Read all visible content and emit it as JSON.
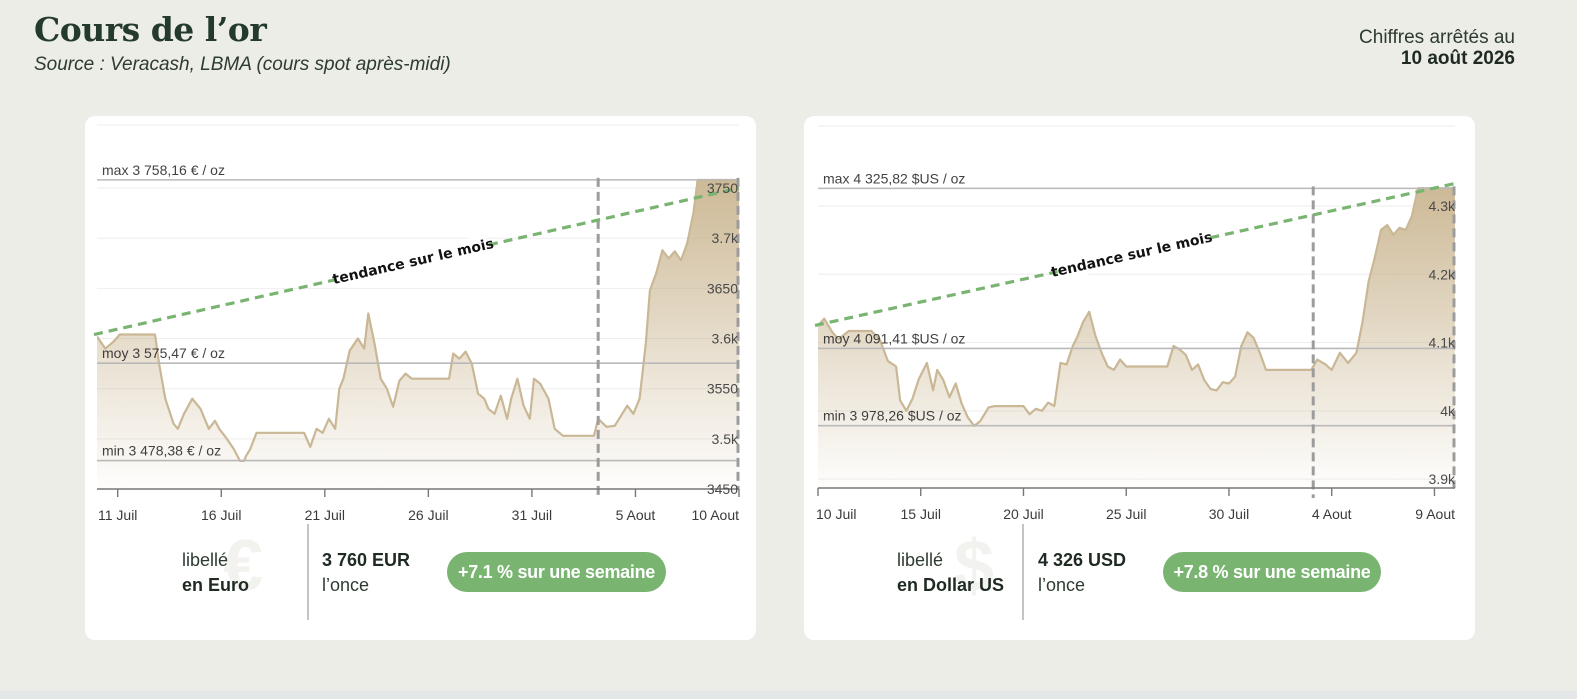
{
  "header": {
    "title": "Cours de l’or",
    "source": "Source : Veracash, LBMA (cours spot après-midi)",
    "date_label": "Chiffres arrêtés au",
    "date_value": "10 août 2026"
  },
  "colors": {
    "background": "#ecede6",
    "line": "#c9b795",
    "fill": "#c4ad84",
    "trend": "#79b471",
    "badge": "#79b471"
  },
  "chart_data": [
    {
      "type": "area",
      "currency": "EUR",
      "trend_label": "tendance sur le mois",
      "x_ticks": [
        "11 Juil",
        "16 Juil",
        "21 Juil",
        "26 Juil",
        "31 Juil",
        "5 Aout",
        "10 Aout"
      ],
      "x_tick_days": [
        1,
        6,
        11,
        16,
        21,
        26,
        31
      ],
      "x_range": [
        0,
        31
      ],
      "y_ticks": [
        "3750",
        "3.7k",
        "3650",
        "3.6k",
        "3550",
        "3.5k",
        "3450"
      ],
      "y_tick_values": [
        3750,
        3700,
        3650,
        3600,
        3550,
        3500,
        3450
      ],
      "ylim": [
        3450,
        3770
      ],
      "x_marker": 24.2,
      "max": {
        "label": "max 3 758,16 € / oz",
        "value": 3758.16
      },
      "avg": {
        "label": "moy 3 575,47 € / oz",
        "value": 3575.47
      },
      "min": {
        "label": "min 3 478,38 € / oz",
        "value": 3478.38
      },
      "trend": [
        [
          0,
          3604
        ],
        [
          31,
          3750
        ]
      ],
      "series": [
        {
          "x": [
            0,
            0.4,
            0.8,
            1.1,
            1.5,
            2.0,
            2.8,
            3.0,
            3.3,
            3.7,
            3.9,
            4.2,
            4.6,
            5.0,
            5.4,
            5.7,
            5.9,
            6.2,
            6.6,
            6.9,
            7.1,
            7.2,
            7.4,
            7.7,
            8.0,
            8.3,
            9.0,
            10.0,
            10.3,
            10.6,
            10.9,
            11.2,
            11.5,
            11.7,
            11.9,
            12.2,
            12.6,
            12.9,
            13.1,
            13.4,
            13.7,
            14.0,
            14.3,
            14.6,
            14.9,
            15.2,
            15.5,
            16.0,
            17.0,
            17.2,
            17.5,
            17.8,
            18.1,
            18.4,
            18.7,
            18.9,
            19.2,
            19.5,
            19.8,
            20.0,
            20.3,
            20.6,
            20.9,
            21.1,
            21.4,
            21.8,
            22.1,
            22.5,
            23.0,
            24.0,
            24.2,
            24.6,
            25.0,
            25.3,
            25.6,
            25.9,
            26.2,
            26.5,
            26.7,
            27.0,
            27.3,
            27.6,
            27.9,
            28.2,
            28.5,
            28.8,
            29.0,
            29.3,
            30.0,
            31.0
          ],
          "y": [
            3602,
            3590,
            3597,
            3604,
            3604,
            3604,
            3604,
            3575,
            3540,
            3515,
            3510,
            3525,
            3540,
            3530,
            3510,
            3518,
            3510,
            3502,
            3490,
            3478,
            3478,
            3483,
            3490,
            3506,
            3506,
            3506,
            3506,
            3506,
            3492,
            3510,
            3506,
            3520,
            3510,
            3550,
            3560,
            3588,
            3600,
            3590,
            3625,
            3595,
            3560,
            3550,
            3532,
            3558,
            3565,
            3560,
            3560,
            3560,
            3560,
            3585,
            3580,
            3587,
            3575,
            3545,
            3540,
            3530,
            3525,
            3543,
            3520,
            3540,
            3560,
            3533,
            3520,
            3560,
            3555,
            3540,
            3510,
            3503,
            3503,
            3503,
            3520,
            3512,
            3513,
            3523,
            3533,
            3525,
            3540,
            3595,
            3648,
            3665,
            3688,
            3680,
            3687,
            3678,
            3695,
            3725,
            3758,
            3758,
            3758,
            3758
          ]
        }
      ],
      "summary": {
        "currency_label_top": "libellé",
        "currency_label_bottom": "en Euro",
        "currency_glyph": "€",
        "price": "3 760 EUR",
        "unit": "l’once",
        "change": "+7.1 % sur une semaine"
      }
    },
    {
      "type": "area",
      "currency": "USD",
      "trend_label": "tendance sur le mois",
      "x_ticks": [
        "10 Juil",
        "15 Juil",
        "20 Juil",
        "25 Juil",
        "30 Juil",
        "4 Aout",
        "9 Aout"
      ],
      "x_tick_days": [
        0,
        5,
        10,
        15,
        20,
        25,
        30
      ],
      "x_range": [
        0,
        31
      ],
      "y_ticks": [
        "4.3k",
        "4.2k",
        "4.1k",
        "4k",
        "3.9k"
      ],
      "y_tick_values": [
        4300,
        4200,
        4100,
        4000,
        3900
      ],
      "ylim": [
        3887,
        4341
      ],
      "x_marker": 24.1,
      "max": {
        "label": "max 4 325,82 $US / oz",
        "value": 4325.82
      },
      "avg": {
        "label": "moy 4 091,41 $US / oz",
        "value": 4091.41
      },
      "min": {
        "label": "min 3 978,26 $US / oz",
        "value": 3978.26
      },
      "trend": [
        [
          0,
          4125
        ],
        [
          31,
          4333
        ]
      ],
      "series": [
        {
          "x": [
            0,
            0.3,
            0.7,
            1.0,
            1.5,
            2.0,
            2.6,
            3.0,
            3.4,
            3.8,
            4.0,
            4.3,
            4.6,
            4.9,
            5.3,
            5.6,
            5.8,
            6.1,
            6.4,
            6.7,
            7.0,
            7.3,
            7.6,
            7.9,
            8.3,
            8.6,
            9.0,
            10.0,
            10.3,
            10.6,
            10.9,
            11.2,
            11.5,
            11.8,
            12.1,
            12.4,
            12.6,
            12.9,
            13.2,
            13.5,
            13.8,
            14.1,
            14.4,
            14.7,
            15.0,
            16.0,
            17.0,
            17.3,
            17.6,
            17.9,
            18.2,
            18.5,
            18.8,
            19.1,
            19.4,
            19.7,
            20.0,
            20.3,
            20.6,
            20.9,
            21.2,
            21.5,
            21.8,
            22.0,
            23.0,
            24.0,
            24.3,
            24.7,
            25.0,
            25.4,
            25.8,
            26.2,
            26.5,
            26.8,
            27.1,
            27.4,
            27.7,
            28.0,
            28.3,
            28.6,
            28.9,
            29.2,
            29.6,
            30.0,
            31.0
          ],
          "y": [
            4125,
            4135,
            4115,
            4105,
            4117,
            4117,
            4117,
            4105,
            4073,
            4065,
            4015,
            4000,
            4018,
            4046,
            4070,
            4030,
            4060,
            4045,
            4020,
            4040,
            4010,
            3990,
            3978,
            3985,
            4005,
            4007,
            4007,
            4007,
            3995,
            4003,
            4000,
            4012,
            4007,
            4070,
            4068,
            4095,
            4107,
            4130,
            4145,
            4110,
            4085,
            4065,
            4060,
            4075,
            4065,
            4065,
            4065,
            4095,
            4090,
            4082,
            4060,
            4068,
            4045,
            4032,
            4030,
            4042,
            4040,
            4050,
            4095,
            4115,
            4107,
            4085,
            4060,
            4060,
            4060,
            4060,
            4075,
            4068,
            4060,
            4085,
            4070,
            4085,
            4130,
            4190,
            4225,
            4265,
            4272,
            4258,
            4268,
            4265,
            4285,
            4326,
            4326,
            4326,
            4326
          ]
        }
      ],
      "summary": {
        "currency_label_top": "libellé",
        "currency_label_bottom": "en Dollar US",
        "currency_glyph": "$",
        "price": "4 326 USD",
        "unit": "l’once",
        "change": "+7.8 % sur une semaine"
      }
    }
  ]
}
